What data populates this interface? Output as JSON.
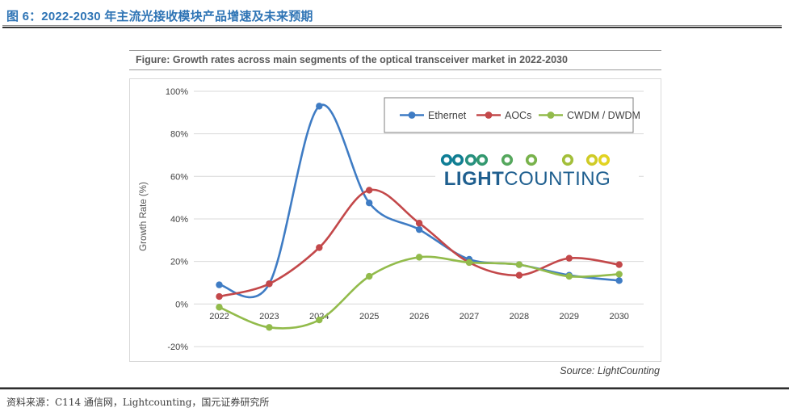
{
  "page": {
    "title": "图 6：2022-2030 年主流光接收模块产品增速及未来预期",
    "footer_source": "资料来源：C114 通信网，Lightcounting，国元证券研究所"
  },
  "figure": {
    "header": "Figure: Growth rates across main segments of the optical transceiver market in 2022-2030",
    "source_note": "Source: LightCounting",
    "logo": {
      "part_bold": "LIGHT",
      "part_regular": "COUNTING",
      "text_color": "#1F5F8F",
      "chain_ring_colors": [
        "#0F7E96",
        "#117E92",
        "#27907F",
        "#33986F",
        "#55A75D",
        "#78B24B",
        "#A3BF3A",
        "#CFCB27",
        "#E2D321"
      ]
    }
  },
  "chart_data": {
    "type": "line",
    "title": "Figure: Growth rates across main segments of the optical transceiver market in 2022-2030",
    "categories": [
      "2022",
      "2023",
      "2024",
      "2025",
      "2026",
      "2027",
      "2028",
      "2029",
      "2030"
    ],
    "series": [
      {
        "name": "Ethernet",
        "color": "#3F7CC4",
        "values": [
          9,
          9.5,
          93,
          47.5,
          35,
          21,
          18.5,
          13.5,
          11
        ]
      },
      {
        "name": "AOCs",
        "color": "#C3484A",
        "values": [
          3.5,
          9.5,
          26.5,
          53.5,
          38,
          19.5,
          13.5,
          21.5,
          18.5
        ]
      },
      {
        "name": "CWDM / DWDM",
        "color": "#92BB4B",
        "values": [
          -1.5,
          -11,
          -7.5,
          13,
          22,
          19.5,
          18.5,
          13,
          14
        ]
      }
    ],
    "xlabel": "",
    "ylabel": "Growth Rate (%)",
    "ylim": [
      -20,
      100
    ],
    "yticks": [
      100,
      80,
      60,
      40,
      20,
      0,
      -20
    ],
    "ytick_suffix": "%",
    "grid": true,
    "line_smooth": true,
    "legend_position": "top-right",
    "annotations": [
      "Source: LightCounting"
    ]
  }
}
